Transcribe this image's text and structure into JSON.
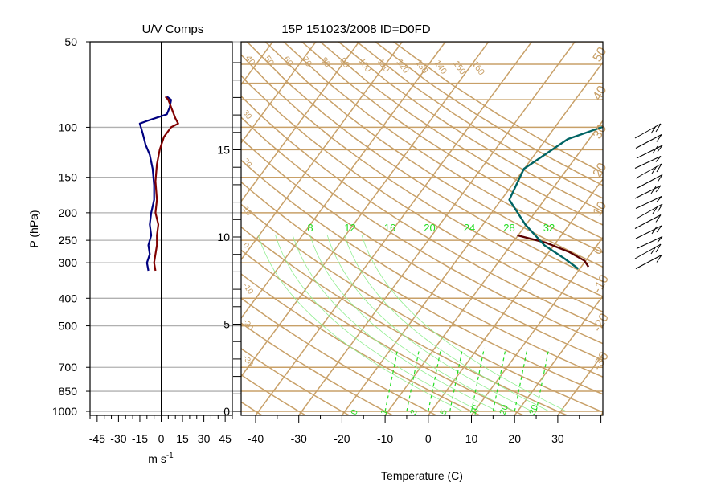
{
  "chart_data": [
    {
      "type": "line",
      "title": "U/V Comps",
      "xlabel": "m s",
      "xlabel_sup": "-1",
      "ylabel": "P (hPa)",
      "y_scale": "log",
      "xlim": [
        -50,
        50
      ],
      "ylim": [
        1000,
        50
      ],
      "x_ticks": [
        -45,
        -30,
        -15,
        0,
        15,
        30,
        45
      ],
      "y_ticks": [
        50,
        100,
        150,
        200,
        250,
        300,
        400,
        500,
        700,
        850,
        1000
      ],
      "grid": "horizontal lines at labeled pressures",
      "colors": {
        "u": "#000080",
        "v": "#800000",
        "grid": "#b0b0b0",
        "zero_line": "#000000"
      },
      "series": [
        {
          "key": "u",
          "color": "#000080",
          "points": [
            [
              4,
              78
            ],
            [
              7,
              80
            ],
            [
              6,
              85
            ],
            [
              4,
              90
            ],
            [
              -10,
              95
            ],
            [
              -15,
              97
            ],
            [
              -13,
              105
            ],
            [
              -11,
              115
            ],
            [
              -8,
              125
            ],
            [
              -6,
              140
            ],
            [
              -5,
              160
            ],
            [
              -5,
              180
            ],
            [
              -7,
              200
            ],
            [
              -8,
              220
            ],
            [
              -7,
              240
            ],
            [
              -9,
              260
            ],
            [
              -8,
              280
            ],
            [
              -10,
              300
            ],
            [
              -9,
              320
            ]
          ]
        },
        {
          "key": "v",
          "color": "#800000",
          "points": [
            [
              3,
              78
            ],
            [
              5,
              80
            ],
            [
              7,
              85
            ],
            [
              10,
              93
            ],
            [
              12,
              97
            ],
            [
              7,
              100
            ],
            [
              2,
              108
            ],
            [
              -1,
              120
            ],
            [
              -3,
              135
            ],
            [
              -4,
              155
            ],
            [
              -3,
              180
            ],
            [
              -4,
              200
            ],
            [
              -2,
              220
            ],
            [
              -3,
              240
            ],
            [
              -3,
              260
            ],
            [
              -4,
              280
            ],
            [
              -5,
              300
            ],
            [
              -4,
              320
            ]
          ]
        }
      ]
    },
    {
      "type": "line",
      "title": "15P 151023/2008 ID=D0FD",
      "subtype": "skew-t",
      "xlabel": "Temperature (C)",
      "xlim": [
        -45,
        40
      ],
      "ylim": [
        1000,
        50
      ],
      "x_ticks": [
        -40,
        -30,
        -20,
        -10,
        0,
        10,
        20,
        30
      ],
      "height_ticks_km": [
        0,
        5,
        10,
        15
      ],
      "isotherm_labels": [
        "40",
        "50",
        "60",
        "70",
        "80",
        "90",
        "100",
        "110",
        "120",
        "130",
        "140",
        "150",
        "160"
      ],
      "mixing_ratio_labels": [
        "8",
        "12",
        "16",
        "20",
        "24",
        "28",
        "32"
      ],
      "bottom_green_labels": [
        "0",
        "1",
        "3",
        "5",
        "10",
        "20",
        "30"
      ],
      "right_labels": [
        "50",
        "40",
        "30",
        "20",
        "10",
        "0",
        "-10",
        "-20",
        "-30"
      ],
      "colors": {
        "background_lines": "#c8a068",
        "moist_adiabats": "#90ee90",
        "labels_green": "#22dd22",
        "temperature": "#5a0000",
        "dewpoint": "#006464",
        "barbs": "#000000"
      },
      "series": [
        {
          "key": "temperature",
          "color": "#5a0000",
          "points": [
            [
              -10,
              240
            ],
            [
              -2,
              255
            ],
            [
              5,
              275
            ],
            [
              10,
              295
            ],
            [
              12,
              310
            ]
          ]
        },
        {
          "key": "dewpoint",
          "color": "#006464",
          "points": [
            [
              -5,
              85
            ],
            [
              -2,
              90
            ],
            [
              2,
              95
            ],
            [
              -8,
              98
            ],
            [
              -15,
              110
            ],
            [
              -20,
              140
            ],
            [
              -18,
              180
            ],
            [
              -10,
              220
            ],
            [
              -2,
              260
            ],
            [
              5,
              290
            ],
            [
              10,
              315
            ]
          ]
        }
      ],
      "wind_barb_count": 14
    }
  ]
}
